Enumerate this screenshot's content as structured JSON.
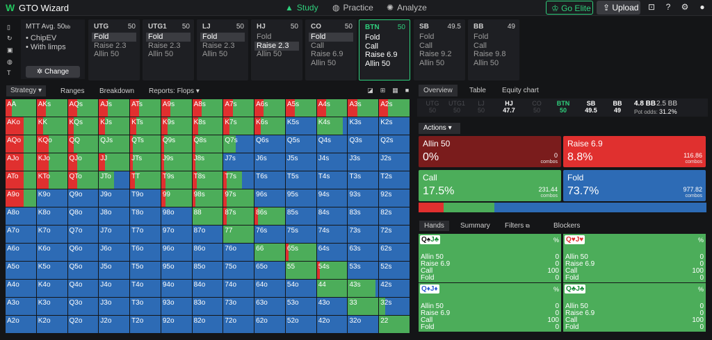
{
  "app": {
    "logo": "W",
    "title": "GTO Wizard"
  },
  "nav": {
    "study": "Study",
    "practice": "Practice",
    "analyze": "Analyze",
    "go_elite": "Go Elite",
    "upload": "Upload"
  },
  "mtt": {
    "title": "MTT  Avg. 50",
    "title_unit": "bb",
    "items": [
      "• ChipEV",
      "• With limps"
    ],
    "change": "Change"
  },
  "positions": [
    {
      "name": "UTG",
      "stack": "50",
      "actions": [
        "Fold",
        "Raise 2.3",
        "Allin 50"
      ],
      "hl": 0
    },
    {
      "name": "UTG1",
      "stack": "50",
      "actions": [
        "Fold",
        "Raise 2.3",
        "Allin 50"
      ],
      "hl": 0
    },
    {
      "name": "LJ",
      "stack": "50",
      "actions": [
        "Fold",
        "Raise 2.3",
        "Allin 50"
      ],
      "hl": 0
    },
    {
      "name": "HJ",
      "stack": "50",
      "actions": [
        "Fold",
        "Raise 2.3",
        "Allin 50"
      ],
      "hl": 1
    },
    {
      "name": "CO",
      "stack": "50",
      "actions": [
        "Fold",
        "Call",
        "Raise 6.9",
        "Allin 50"
      ],
      "hl": 0
    },
    {
      "name": "BTN",
      "stack": "50",
      "actions": [
        "Fold",
        "Call",
        "Raise 6.9",
        "Allin 50"
      ],
      "hl": -1,
      "selected": true
    },
    {
      "name": "SB",
      "stack": "49.5",
      "actions": [
        "Fold",
        "Call",
        "Raise 9.2",
        "Allin 50"
      ],
      "hl": -1
    },
    {
      "name": "BB",
      "stack": "49",
      "actions": [
        "Fold",
        "Call",
        "Raise 9.8",
        "Allin 50"
      ],
      "hl": -1
    }
  ],
  "subtabs": {
    "strategy": "Strategy",
    "ranges": "Ranges",
    "breakdown": "Breakdown",
    "reports": "Reports: Flops"
  },
  "colors": {
    "green": "#4cad5a",
    "red": "#e0302f",
    "blue": "#2d6bb5",
    "darkred": "#7a1c1c"
  },
  "grid": {
    "labels": [
      [
        "AA",
        "AKs",
        "AQs",
        "AJs",
        "ATs",
        "A9s",
        "A8s",
        "A7s",
        "A6s",
        "A5s",
        "A4s",
        "A3s",
        "A2s"
      ],
      [
        "AKo",
        "KK",
        "KQs",
        "KJs",
        "KTs",
        "K9s",
        "K8s",
        "K7s",
        "K6s",
        "K5s",
        "K4s",
        "K3s",
        "K2s"
      ],
      [
        "AQo",
        "KQo",
        "QQ",
        "QJs",
        "QTs",
        "Q9s",
        "Q8s",
        "Q7s",
        "Q6s",
        "Q5s",
        "Q4s",
        "Q3s",
        "Q2s"
      ],
      [
        "AJo",
        "KJo",
        "QJo",
        "JJ",
        "JTs",
        "J9s",
        "J8s",
        "J7s",
        "J6s",
        "J5s",
        "J4s",
        "J3s",
        "J2s"
      ],
      [
        "ATo",
        "KTo",
        "QTo",
        "JTo",
        "TT",
        "T9s",
        "T8s",
        "T7s",
        "T6s",
        "T5s",
        "T4s",
        "T3s",
        "T2s"
      ],
      [
        "A9o",
        "K9o",
        "Q9o",
        "J9o",
        "T9o",
        "99",
        "98s",
        "97s",
        "96s",
        "95s",
        "94s",
        "93s",
        "92s"
      ],
      [
        "A8o",
        "K8o",
        "Q8o",
        "J8o",
        "T8o",
        "98o",
        "88",
        "87s",
        "86s",
        "85s",
        "84s",
        "83s",
        "82s"
      ],
      [
        "A7o",
        "K7o",
        "Q7o",
        "J7o",
        "T7o",
        "97o",
        "87o",
        "77",
        "76s",
        "75s",
        "74s",
        "73s",
        "72s"
      ],
      [
        "A6o",
        "K6o",
        "Q6o",
        "J6o",
        "T6o",
        "96o",
        "86o",
        "76o",
        "66",
        "65s",
        "64s",
        "63s",
        "62s"
      ],
      [
        "A5o",
        "K5o",
        "Q5o",
        "J5o",
        "T5o",
        "95o",
        "85o",
        "75o",
        "65o",
        "55",
        "54s",
        "53s",
        "52s"
      ],
      [
        "A4o",
        "K4o",
        "Q4o",
        "J4o",
        "T4o",
        "94o",
        "84o",
        "74o",
        "64o",
        "54o",
        "44",
        "43s",
        "42s"
      ],
      [
        "A3o",
        "K3o",
        "Q3o",
        "J3o",
        "T3o",
        "93o",
        "83o",
        "73o",
        "63o",
        "53o",
        "43o",
        "33",
        "32s"
      ],
      [
        "A2o",
        "K2o",
        "Q2o",
        "J2o",
        "T2o",
        "92o",
        "82o",
        "72o",
        "62o",
        "52o",
        "42o",
        "32o",
        "22"
      ]
    ]
  },
  "right_tabs": {
    "overview": "Overview",
    "table": "Table",
    "equity_chart": "Equity chart"
  },
  "seats": [
    {
      "name": "UTG",
      "stack": "50",
      "state": "dim"
    },
    {
      "name": "UTG1",
      "stack": "50",
      "state": "dim"
    },
    {
      "name": "LJ",
      "stack": "50",
      "state": "dim"
    },
    {
      "name": "HJ",
      "stack": "47.7",
      "state": "on"
    },
    {
      "name": "CO",
      "stack": "50",
      "state": "dim"
    },
    {
      "name": "BTN",
      "stack": "50",
      "state": "btn"
    },
    {
      "name": "SB",
      "stack": "49.5",
      "state": "on"
    },
    {
      "name": "BB",
      "stack": "49",
      "state": "on"
    }
  ],
  "pot": {
    "bb": "4.8 BB",
    "bb2": "2.5 BB",
    "odds_label": "Pot odds:",
    "odds": "31.2%"
  },
  "actions_label": "Actions",
  "action_boxes": [
    {
      "name": "Allin 50",
      "pct": "0%",
      "combos": "0",
      "cl": "combos",
      "color": "#7a1c1c",
      "frac": 0.0
    },
    {
      "name": "Raise 6.9",
      "pct": "8.8%",
      "combos": "116.86",
      "cl": "combos",
      "color": "#e0302f",
      "frac": 0.088
    },
    {
      "name": "Call",
      "pct": "17.5%",
      "combos": "231.44",
      "cl": "combos",
      "color": "#4cad5a",
      "frac": 0.175
    },
    {
      "name": "Fold",
      "pct": "73.7%",
      "combos": "977.82",
      "cl": "combos",
      "color": "#2d6bb5",
      "frac": 0.737
    }
  ],
  "hands_tabs": {
    "hands": "Hands",
    "summary": "Summary",
    "filters": "Filters",
    "blockers": "Blockers"
  },
  "hand_cards": [
    {
      "r1": "Q",
      "s1": "♠",
      "c1": "blk",
      "r2": "J",
      "s2": "♣",
      "c2": "grn",
      "pct": "%",
      "rows": [
        [
          "Allin 50",
          "0"
        ],
        [
          "Raise 6.9",
          "0"
        ],
        [
          "Call",
          "100"
        ],
        [
          "Fold",
          "0"
        ]
      ]
    },
    {
      "r1": "Q",
      "s1": "♥",
      "c1": "red",
      "r2": "J",
      "s2": "♥",
      "c2": "red",
      "pct": "%",
      "rows": [
        [
          "Allin 50",
          "0"
        ],
        [
          "Raise 6.9",
          "0"
        ],
        [
          "Call",
          "100"
        ],
        [
          "Fold",
          "0"
        ]
      ]
    },
    {
      "r1": "Q",
      "s1": "♦",
      "c1": "blu",
      "r2": "J",
      "s2": "♦",
      "c2": "blu",
      "pct": "%",
      "rows": [
        [
          "Allin 50",
          "0"
        ],
        [
          "Raise 6.9",
          "0"
        ],
        [
          "Call",
          "100"
        ],
        [
          "Fold",
          "0"
        ]
      ]
    },
    {
      "r1": "Q",
      "s1": "♣",
      "c1": "grn",
      "r2": "J",
      "s2": "♣",
      "c2": "grn",
      "pct": "%",
      "rows": [
        [
          "Allin 50",
          "0"
        ],
        [
          "Raise 6.9",
          "0"
        ],
        [
          "Call",
          "100"
        ],
        [
          "Fold",
          "0"
        ]
      ]
    }
  ]
}
